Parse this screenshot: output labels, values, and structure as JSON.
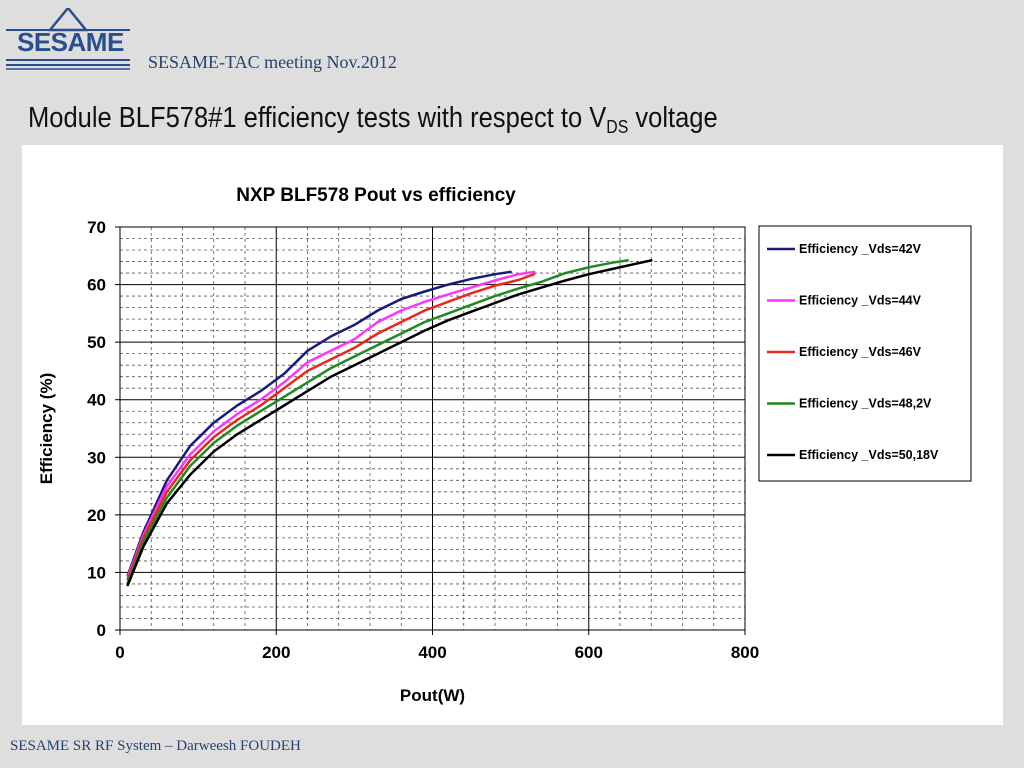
{
  "header": {
    "logo_text": "SESAME",
    "meeting": "SESAME-TAC meeting Nov.2012"
  },
  "slide": {
    "title_main": "Module BLF578#1 efficiency tests with respect to V",
    "title_sub": "DS",
    "title_end": " voltage"
  },
  "footer": {
    "text": "SESAME SR RF System – Darweesh FOUDEH"
  },
  "chart_data": {
    "type": "line",
    "title": "NXP BLF578 Pout vs efficiency",
    "xlabel": "Pout(W)",
    "ylabel": "Efficiency (%)",
    "xlim": [
      0,
      800
    ],
    "ylim": [
      0,
      70
    ],
    "xticks": [
      0,
      200,
      400,
      600,
      800
    ],
    "yticks": [
      0,
      10,
      20,
      30,
      40,
      50,
      60,
      70
    ],
    "grid": true,
    "legend_position": "right",
    "series": [
      {
        "name": "Efficiency _Vds=42V",
        "color": "#1a1a7a",
        "x": [
          10,
          30,
          60,
          90,
          120,
          150,
          180,
          210,
          240,
          270,
          300,
          330,
          360,
          390,
          420,
          450,
          480,
          500
        ],
        "y": [
          9.5,
          17,
          26,
          32,
          36,
          39,
          41.5,
          44.5,
          48.5,
          51,
          53,
          55.5,
          57.5,
          58.8,
          60,
          61,
          61.8,
          62.2
        ]
      },
      {
        "name": "Efficiency _Vds=44V",
        "color": "#ff33ff",
        "x": [
          10,
          30,
          60,
          90,
          120,
          150,
          180,
          210,
          240,
          270,
          300,
          330,
          360,
          390,
          420,
          450,
          480,
          510,
          530
        ],
        "y": [
          9.2,
          16.5,
          25,
          30.5,
          34.5,
          37.5,
          40,
          43,
          46.5,
          48.5,
          50.5,
          53.5,
          55.5,
          57,
          58.3,
          59.5,
          60.7,
          61.8,
          62.2
        ]
      },
      {
        "name": "Efficiency _Vds=46V",
        "color": "#e8281e",
        "x": [
          10,
          30,
          60,
          90,
          120,
          150,
          180,
          210,
          240,
          270,
          300,
          330,
          360,
          390,
          420,
          450,
          480,
          510,
          530
        ],
        "y": [
          8.8,
          16,
          24,
          29.5,
          33.5,
          36.5,
          39,
          42,
          45,
          47,
          49,
          51.5,
          53.5,
          55.5,
          57,
          58.5,
          59.8,
          60.8,
          61.8
        ]
      },
      {
        "name": "Efficiency _Vds=48,2V",
        "color": "#1f8a1f",
        "x": [
          10,
          30,
          60,
          90,
          120,
          150,
          180,
          210,
          240,
          270,
          300,
          330,
          360,
          390,
          420,
          450,
          480,
          510,
          540,
          570,
          600,
          630,
          650
        ],
        "y": [
          8.2,
          15.3,
          23,
          28.5,
          32.5,
          35.5,
          38,
          40.5,
          43,
          45.5,
          47.5,
          49.5,
          51.5,
          53.5,
          55,
          56.5,
          58,
          59.3,
          60.5,
          62,
          63,
          63.8,
          64.2
        ]
      },
      {
        "name": "Efficiency _Vds=50,18V",
        "color": "#000000",
        "x": [
          10,
          30,
          60,
          90,
          120,
          150,
          180,
          210,
          240,
          270,
          300,
          330,
          360,
          390,
          420,
          450,
          480,
          510,
          540,
          570,
          600,
          630,
          660,
          680
        ],
        "y": [
          7.8,
          14.5,
          22,
          27,
          31,
          34,
          36.5,
          39,
          41.5,
          44,
          46,
          48,
          50,
          52,
          53.8,
          55.3,
          56.8,
          58.3,
          59.5,
          60.7,
          61.8,
          62.7,
          63.6,
          64.2
        ]
      }
    ]
  }
}
